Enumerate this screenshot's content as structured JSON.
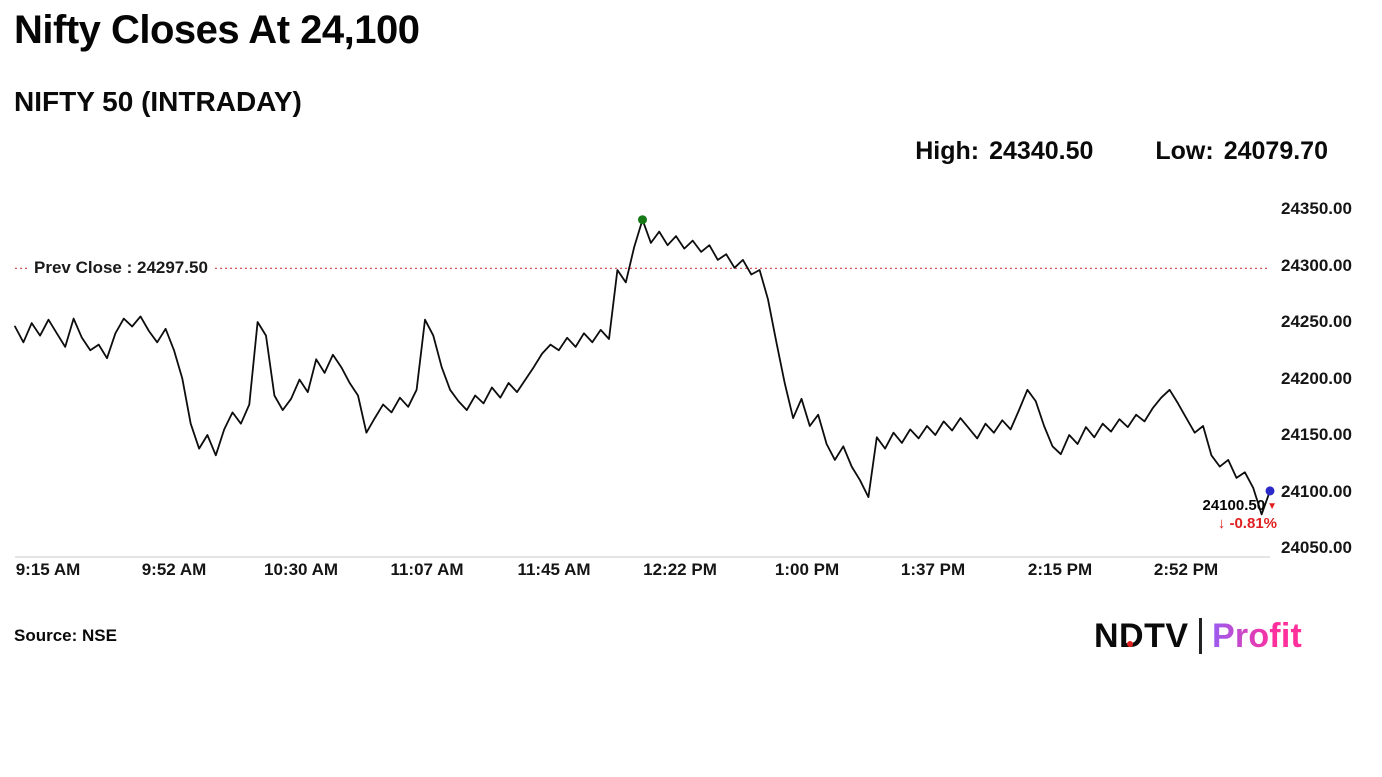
{
  "page": {
    "title": "Nifty Closes At 24,100",
    "subtitle": "NIFTY 50 (INTRADAY)",
    "high_label": "High:",
    "high_value": "24340.50",
    "low_label": "Low:",
    "low_value": "24079.70",
    "source": "Source: NSE"
  },
  "logo": {
    "ndtv": "NDTV",
    "divider": "|",
    "profit": "Profit"
  },
  "chart_data": {
    "type": "line",
    "title": "NIFTY 50 (INTRADAY)",
    "series_name": "NIFTY 50",
    "session": "9:15 AM - 3:30 PM",
    "x_unit": "minutes since 9:15 AM",
    "x_start_min": 0,
    "x_step_min": 2.5,
    "xlim_minutes": [
      0,
      375
    ],
    "values": [
      24246,
      24232,
      24249,
      24238,
      24252,
      24240,
      24228,
      24253,
      24236,
      24225,
      24230,
      24218,
      24240,
      24253,
      24246,
      24255,
      24242,
      24232,
      24244,
      24225,
      24200,
      24160,
      24138,
      24150,
      24132,
      24155,
      24170,
      24160,
      24177,
      24250,
      24238,
      24185,
      24172,
      24182,
      24199,
      24188,
      24217,
      24205,
      24221,
      24210,
      24196,
      24185,
      24152,
      24165,
      24177,
      24170,
      24183,
      24175,
      24190,
      24252,
      24238,
      24210,
      24190,
      24180,
      24172,
      24185,
      24178,
      24192,
      24183,
      24196,
      24188,
      24199,
      24210,
      24222,
      24230,
      24225,
      24236,
      24228,
      24240,
      24232,
      24243,
      24235,
      24296,
      24285,
      24316,
      24340.5,
      24320,
      24330,
      24318,
      24326,
      24315,
      24322,
      24312,
      24318,
      24305,
      24310,
      24298,
      24305,
      24292,
      24296,
      24270,
      24232,
      24196,
      24165,
      24182,
      24158,
      24168,
      24142,
      24128,
      24140,
      24122,
      24110,
      24095,
      24148,
      24138,
      24152,
      24143,
      24155,
      24147,
      24158,
      24150,
      24162,
      24154,
      24165,
      24156,
      24147,
      24160,
      24152,
      24163,
      24155,
      24172,
      24190,
      24180,
      24158,
      24140,
      24133,
      24150,
      24142,
      24157,
      24148,
      24160,
      24153,
      24164,
      24157,
      24168,
      24162,
      24174,
      24183,
      24190,
      24178,
      24165,
      24152,
      24158,
      24132,
      24122,
      24128,
      24112,
      24117,
      24103,
      24079.7,
      24100.5
    ],
    "x_tick_labels": [
      "9:15 AM",
      "9:52 AM",
      "10:30 AM",
      "11:07 AM",
      "11:45 AM",
      "12:22 PM",
      "1:00 PM",
      "1:37 PM",
      "2:15 PM",
      "2:52 PM"
    ],
    "y_ticks": [
      24350,
      24300,
      24250,
      24200,
      24150,
      24100,
      24050
    ],
    "y_tick_labels": [
      "24350.00",
      "24300.00",
      "24250.00",
      "24200.00",
      "24150.00",
      "24100.00",
      "24050.00"
    ],
    "ylim": [
      24050,
      24350
    ],
    "grid": false,
    "legend": "none",
    "prev_close": {
      "value": 24297.5,
      "label": "Prev Close : 24297.50"
    },
    "high": 24340.5,
    "low": 24079.7,
    "close": 24100.5,
    "annotations": {
      "last_price": "24100.50",
      "change_arrow": "↓",
      "change_pct": "-0.81%",
      "down_marker": "▼"
    },
    "colors": {
      "line": "#0d0d0d",
      "prev_close": "#cf4040",
      "peak_dot": "#157a15",
      "last_dot": "#2a2ac8",
      "change": "#e02020",
      "axis": "#c9c9c9",
      "text": "#111111"
    }
  }
}
